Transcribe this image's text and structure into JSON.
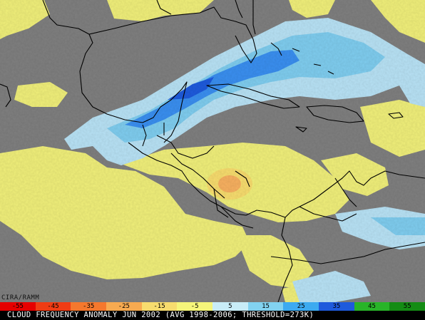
{
  "credit": "CIRA/RAMM",
  "caption": "CLOUD FREQUENCY ANOMALY JUN 2002 (AVG 1998-2006; THRESHOLD=273K)",
  "colorbar": {
    "labels": [
      "-55",
      "-45",
      "-35",
      "-25",
      "-15",
      "-5",
      "5",
      "15",
      "25",
      "35",
      "45",
      "55"
    ],
    "colors": [
      "#e60000",
      "#f03c14",
      "#f5782d",
      "#f7aa50",
      "#f7dc6e",
      "#f5f57a",
      "#c8ecf7",
      "#82d2f0",
      "#3caaf0",
      "#1e5adc",
      "#28b428",
      "#148c14"
    ]
  },
  "legend_colors": {
    "positive_anomaly": "#3c8cf0",
    "negative_anomaly": "#f0f07a",
    "neutral": "#7f7f7f",
    "coastline": "#000000"
  }
}
